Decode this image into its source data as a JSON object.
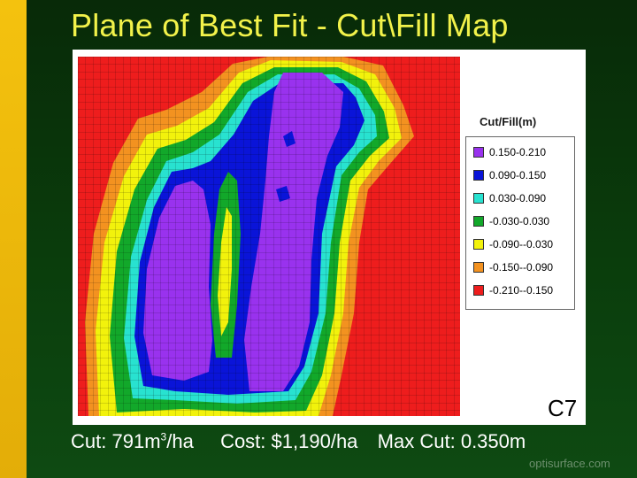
{
  "slide": {
    "title": "Plane of Best Fit - Cut\\Fill Map",
    "map_id": "C7",
    "footer": "optisurface.com"
  },
  "stats": {
    "cut_label": "Cut:",
    "cut_value": "791m",
    "cut_exp": "3",
    "cut_unit": "/ha",
    "cost_label": "Cost:",
    "cost_value": "$1,190/ha",
    "max_cut_label": "Max Cut:",
    "max_cut_value": "0.350m"
  },
  "legend": {
    "title": "Cut/Fill(m)",
    "entries": [
      {
        "label": "0.150-0.210",
        "color": "#9932ee"
      },
      {
        "label": "0.090-0.150",
        "color": "#0a14d8"
      },
      {
        "label": "0.030-0.090",
        "color": "#28e2d0"
      },
      {
        "label": "-0.030-0.030",
        "color": "#12a82a"
      },
      {
        "label": "-0.090--0.030",
        "color": "#f2f20c"
      },
      {
        "label": "-0.150--0.090",
        "color": "#f39220"
      },
      {
        "label": "-0.210--0.150",
        "color": "#ee1d1d"
      }
    ]
  }
}
